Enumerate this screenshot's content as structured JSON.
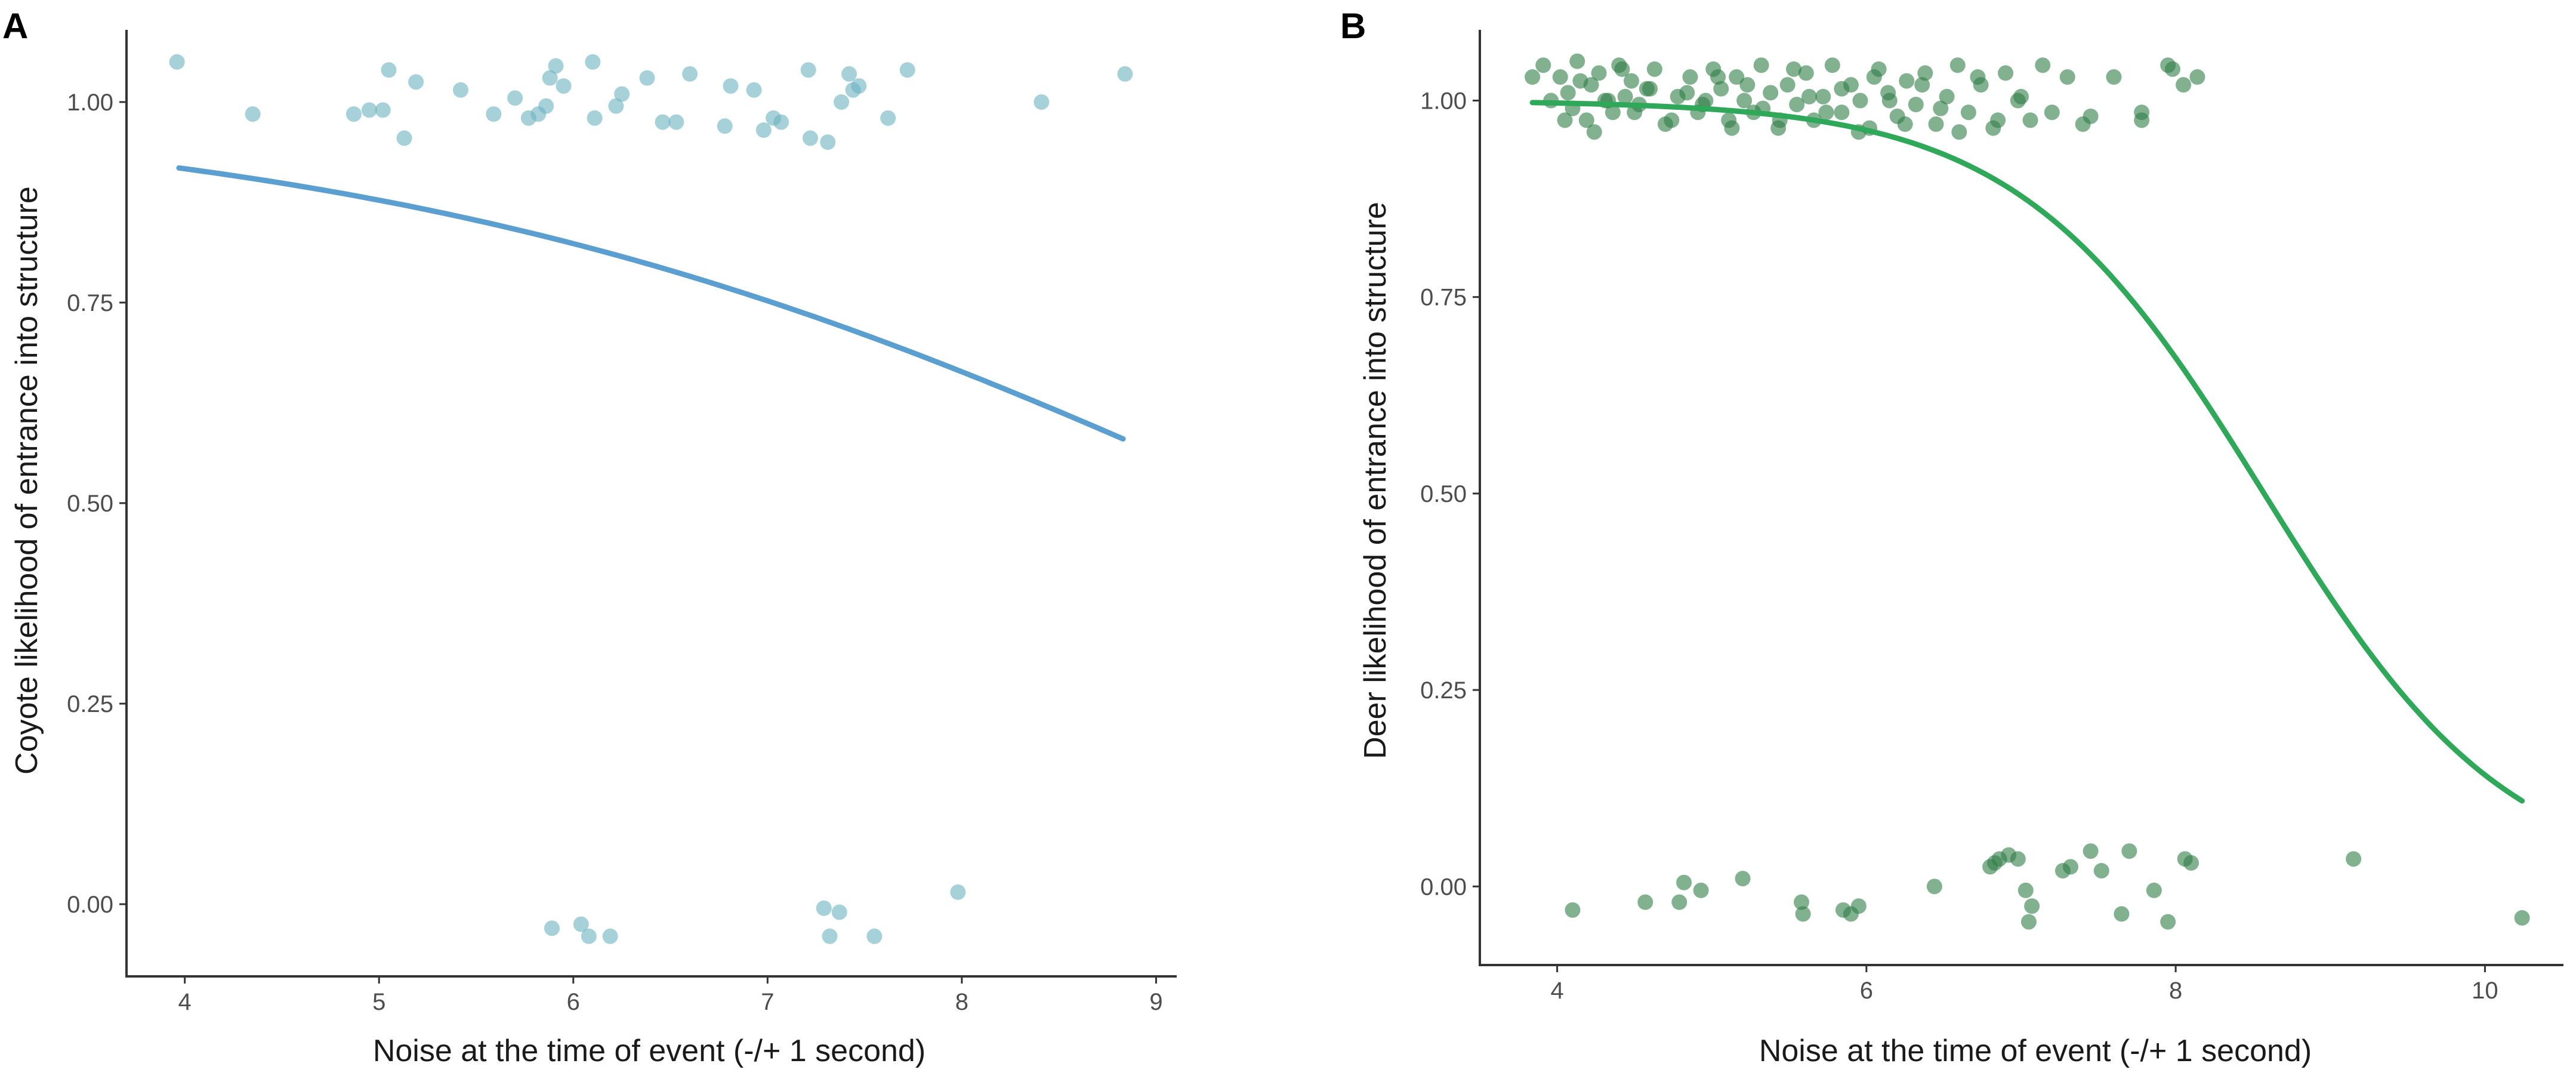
{
  "figure": {
    "panels": [
      {
        "label": "A"
      },
      {
        "label": "B"
      }
    ]
  },
  "chart_data": [
    {
      "type": "scatter",
      "panel": "A",
      "title": "",
      "xlabel": "Noise at the time of event (-/+ 1 second)",
      "ylabel": "Coyote likelihood of entrance into structure",
      "xlim": [
        3.7,
        9.1
      ],
      "ylim": [
        -0.09,
        1.09
      ],
      "xticks": [
        4,
        5,
        6,
        7,
        8,
        9
      ],
      "yticks": [
        0.0,
        0.25,
        0.5,
        0.75,
        1.0
      ],
      "xtick_labels": [
        "4",
        "5",
        "6",
        "7",
        "8",
        "9"
      ],
      "ytick_labels": [
        "0.00",
        "0.25",
        "0.50",
        "0.75",
        "1.00"
      ],
      "grid": false,
      "point_color": "#6bb3bf",
      "line_color": "#5b9fd1",
      "points": {
        "x": [
          3.96,
          4.35,
          4.87,
          4.95,
          5.02,
          5.05,
          5.13,
          5.19,
          5.42,
          5.59,
          5.7,
          5.77,
          5.82,
          5.86,
          5.88,
          5.91,
          5.95,
          6.1,
          6.11,
          6.22,
          6.25,
          6.38,
          6.46,
          6.53,
          6.6,
          6.78,
          6.81,
          6.93,
          6.98,
          7.03,
          7.07,
          7.21,
          7.22,
          7.31,
          7.38,
          7.42,
          7.44,
          7.47,
          7.62,
          7.72,
          8.41,
          8.84,
          5.89,
          6.04,
          6.08,
          6.19,
          7.29,
          7.32,
          7.37,
          7.55,
          7.98
        ],
        "y": [
          1.05,
          0.985,
          0.985,
          0.99,
          0.99,
          1.04,
          0.955,
          1.025,
          1.015,
          0.985,
          1.005,
          0.98,
          0.985,
          0.995,
          1.03,
          1.045,
          1.02,
          1.05,
          0.98,
          0.995,
          1.01,
          1.03,
          0.975,
          0.975,
          1.035,
          0.97,
          1.02,
          1.015,
          0.965,
          0.98,
          0.975,
          1.04,
          0.955,
          0.95,
          1.0,
          1.035,
          1.015,
          1.02,
          0.98,
          1.04,
          1.0,
          1.035,
          -0.03,
          -0.025,
          -0.04,
          -0.04,
          -0.005,
          -0.04,
          -0.01,
          -0.04,
          0.015
        ]
      },
      "fit_line": {
        "x_range": [
          3.97,
          8.83
        ],
        "model": "logistic",
        "intercept": 4.12,
        "slope": -0.43
      }
    },
    {
      "type": "scatter",
      "panel": "B",
      "title": "",
      "xlabel": "Noise at the time of event (-/+ 1 second)",
      "ylabel": "Deer likelihood of entrance into structure",
      "xlim": [
        3.5,
        10.5
      ],
      "ylim": [
        -0.1,
        1.09
      ],
      "xticks": [
        4,
        6,
        8,
        10
      ],
      "yticks": [
        0.0,
        0.25,
        0.5,
        0.75,
        1.0
      ],
      "xtick_labels": [
        "4",
        "6",
        "8",
        "10"
      ],
      "ytick_labels": [
        "0.00",
        "0.25",
        "0.50",
        "0.75",
        "1.00"
      ],
      "grid": false,
      "point_color": "#2e7d46",
      "line_color": "#2fa85a",
      "points": {
        "x": [
          3.84,
          3.91,
          3.96,
          4.02,
          4.07,
          4.1,
          4.13,
          4.19,
          4.22,
          4.27,
          4.31,
          4.36,
          4.4,
          4.44,
          4.48,
          4.53,
          4.58,
          4.63,
          4.7,
          4.78,
          4.86,
          4.91,
          4.96,
          5.01,
          5.06,
          5.11,
          5.16,
          5.21,
          5.27,
          5.32,
          5.38,
          5.43,
          5.49,
          5.55,
          5.61,
          5.66,
          5.72,
          5.78,
          5.84,
          5.9,
          5.96,
          6.02,
          6.08,
          6.14,
          6.2,
          6.26,
          6.32,
          6.38,
          6.45,
          6.52,
          6.59,
          6.66,
          6.74,
          6.82,
          6.9,
          6.98,
          7.06,
          7.14,
          7.3,
          7.45,
          7.6,
          7.78,
          7.95,
          8.05,
          8.14,
          4.05,
          4.15,
          4.24,
          4.33,
          4.42,
          4.5,
          4.6,
          4.74,
          4.84,
          4.94,
          5.04,
          5.13,
          5.23,
          5.33,
          5.44,
          5.53,
          5.63,
          5.74,
          5.84,
          5.95,
          6.05,
          6.15,
          6.25,
          6.36,
          6.48,
          6.6,
          6.72,
          6.85,
          7.0,
          7.2,
          7.4,
          7.78,
          7.98,
          4.1,
          4.57,
          4.79,
          4.82,
          4.93,
          5.2,
          5.58,
          5.59,
          5.85,
          5.9,
          5.95,
          6.44,
          6.8,
          6.83,
          6.86,
          6.92,
          6.98,
          7.03,
          7.05,
          7.07,
          7.27,
          7.32,
          7.45,
          7.52,
          7.65,
          7.7,
          7.86,
          7.95,
          8.06,
          8.1,
          9.15,
          10.24
        ],
        "y": [
          1.03,
          1.045,
          1.0,
          1.03,
          1.01,
          0.99,
          1.05,
          0.975,
          1.02,
          1.035,
          1.0,
          0.985,
          1.045,
          1.005,
          1.025,
          0.995,
          1.015,
          1.04,
          0.97,
          1.005,
          1.03,
          0.985,
          1.0,
          1.04,
          1.015,
          0.975,
          1.03,
          1.0,
          0.985,
          1.045,
          1.01,
          0.965,
          1.02,
          0.995,
          1.035,
          0.975,
          1.005,
          1.045,
          0.985,
          1.02,
          1.0,
          0.965,
          1.04,
          1.01,
          0.98,
          1.025,
          0.995,
          1.035,
          0.97,
          1.005,
          1.045,
          0.985,
          1.02,
          0.965,
          1.035,
          1.0,
          0.975,
          1.045,
          1.03,
          0.98,
          1.03,
          0.985,
          1.045,
          1.02,
          1.03,
          0.975,
          1.025,
          0.96,
          1.0,
          1.04,
          0.985,
          1.015,
          0.975,
          1.01,
          0.995,
          1.03,
          0.965,
          1.02,
          0.99,
          0.975,
          1.04,
          1.005,
          0.985,
          1.015,
          0.96,
          1.03,
          1.0,
          0.97,
          1.02,
          0.99,
          0.96,
          1.03,
          0.975,
          1.005,
          0.985,
          0.97,
          0.975,
          1.04,
          -0.03,
          -0.02,
          -0.02,
          0.005,
          -0.005,
          0.01,
          -0.02,
          -0.035,
          -0.03,
          -0.035,
          -0.025,
          0.0,
          0.025,
          0.03,
          0.035,
          0.04,
          0.035,
          -0.005,
          -0.045,
          -0.025,
          0.02,
          0.025,
          0.045,
          0.02,
          -0.035,
          0.045,
          -0.005,
          -0.045,
          0.035,
          0.03,
          0.035,
          -0.04
        ]
      },
      "fit_line": {
        "x_range": [
          3.84,
          10.24
        ],
        "model": "logistic",
        "intercept": 10.8,
        "slope": -1.26
      }
    }
  ]
}
